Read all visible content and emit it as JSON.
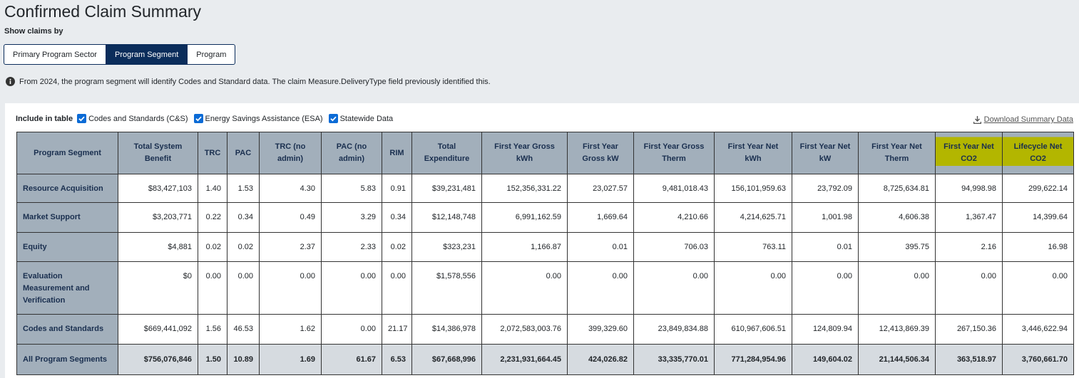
{
  "header": {
    "title": "Confirmed Claim Summary",
    "show_by_label": "Show claims by"
  },
  "buttons": [
    "Primary Program Sector",
    "Program Segment",
    "Program"
  ],
  "info": "From 2024, the program segment will identify Codes and Standard data. The claim Measure.DeliveryType field previously identified this.",
  "filters": {
    "label": "Include in table",
    "options": [
      "Codes and Standards (C&S)",
      "Energy Savings Assistance (ESA)",
      "Statewide Data"
    ]
  },
  "download": "Download Summary Data",
  "table": {
    "columns": [
      "Program Segment",
      "Total System Benefit",
      "TRC",
      "PAC",
      "TRC (no admin)",
      "PAC (no admin)",
      "RIM",
      "Total Expenditure",
      "First Year Gross kWh",
      "First Year Gross kW",
      "First Year Gross Therm",
      "First Year Net kWh",
      "First Year Net kW",
      "First Year Net Therm",
      "First Year Net CO2",
      "Lifecycle Net CO2"
    ],
    "rows": [
      [
        "Resource Acquisition",
        "$83,427,103",
        "1.40",
        "1.53",
        "4.30",
        "5.83",
        "0.91",
        "$39,231,481",
        "152,356,331.22",
        "23,027.57",
        "9,481,018.43",
        "156,101,959.63",
        "23,792.09",
        "8,725,634.81",
        "94,998.98",
        "299,622.14"
      ],
      [
        "Market Support",
        "$3,203,771",
        "0.22",
        "0.34",
        "0.49",
        "3.29",
        "0.34",
        "$12,148,748",
        "6,991,162.59",
        "1,669.64",
        "4,210.66",
        "4,214,625.71",
        "1,001.98",
        "4,606.38",
        "1,367.47",
        "14,399.64"
      ],
      [
        "Equity",
        "$4,881",
        "0.02",
        "0.02",
        "2.37",
        "2.33",
        "0.02",
        "$323,231",
        "1,166.87",
        "0.01",
        "706.03",
        "763.11",
        "0.01",
        "395.75",
        "2.16",
        "16.98"
      ],
      [
        "Evaluation Measurement and Verification",
        "$0",
        "0.00",
        "0.00",
        "0.00",
        "0.00",
        "0.00",
        "$1,578,556",
        "0.00",
        "0.00",
        "0.00",
        "0.00",
        "0.00",
        "0.00",
        "0.00",
        "0.00"
      ],
      [
        "Codes and Standards",
        "$669,441,092",
        "1.56",
        "46.53",
        "1.62",
        "0.00",
        "21.17",
        "$14,386,978",
        "2,072,583,003.76",
        "399,329.60",
        "23,849,834.88",
        "610,967,606.51",
        "124,809.94",
        "12,413,869.39",
        "267,150.36",
        "3,446,622.94"
      ],
      [
        "All Program Segments",
        "$756,076,846",
        "1.50",
        "10.89",
        "1.69",
        "61.67",
        "6.53",
        "$67,668,996",
        "2,231,931,664.45",
        "424,026.82",
        "33,335,770.01",
        "771,284,954.96",
        "149,604.02",
        "21,144,506.34",
        "363,518.97",
        "3,760,661.70"
      ]
    ]
  }
}
